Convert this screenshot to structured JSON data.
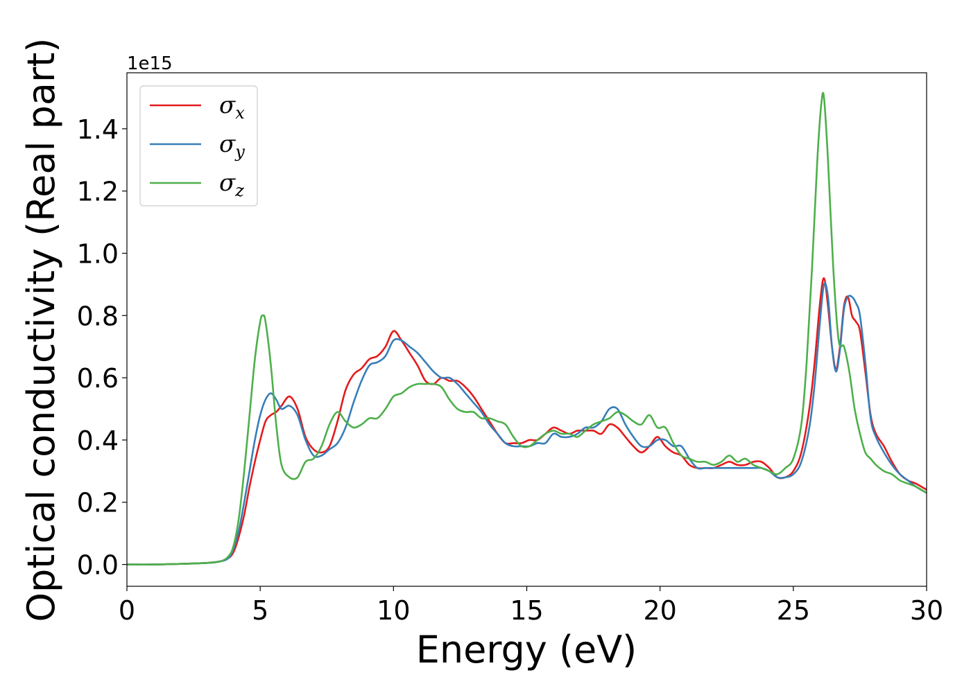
{
  "chart_data": {
    "type": "line",
    "xlabel": "Energy (eV)",
    "ylabel": "Optical conductivity (Real part)",
    "y_offset_label": "1e15",
    "xlim": [
      0,
      30
    ],
    "ylim": [
      -0.07,
      1.58
    ],
    "x_ticks": [
      0,
      5,
      10,
      15,
      20,
      25,
      30
    ],
    "x_tick_labels": [
      "0",
      "5",
      "10",
      "15",
      "20",
      "25",
      "30"
    ],
    "y_ticks": [
      0.0,
      0.2,
      0.4,
      0.6,
      0.8,
      1.0,
      1.2,
      1.4
    ],
    "y_tick_labels": [
      "0.0",
      "0.2",
      "0.4",
      "0.6",
      "0.8",
      "1.0",
      "1.2",
      "1.4"
    ],
    "grid": false,
    "legend_position": "top-left",
    "series": [
      {
        "name": "σx",
        "legend_symbol": "σ",
        "legend_subscript": "x",
        "color": "#e41a1c",
        "x": [
          0,
          1,
          2,
          3,
          3.5,
          3.8,
          4.0,
          4.2,
          4.4,
          4.6,
          4.8,
          5.0,
          5.2,
          5.4,
          5.6,
          5.8,
          6.1,
          6.4,
          6.7,
          7.0,
          7.3,
          7.6,
          7.9,
          8.2,
          8.5,
          8.8,
          9.1,
          9.4,
          9.7,
          10.0,
          10.3,
          10.6,
          10.9,
          11.2,
          11.5,
          11.8,
          12.1,
          12.4,
          12.7,
          13.0,
          13.3,
          13.6,
          13.9,
          14.2,
          14.5,
          14.8,
          15.1,
          15.4,
          15.7,
          16.0,
          16.3,
          16.6,
          16.9,
          17.2,
          17.5,
          17.8,
          18.1,
          18.4,
          18.7,
          19.0,
          19.3,
          19.6,
          19.9,
          20.2,
          20.5,
          20.8,
          21.1,
          21.4,
          21.7,
          22.0,
          22.3,
          22.6,
          22.9,
          23.2,
          23.5,
          23.8,
          24.1,
          24.4,
          24.7,
          25.0,
          25.3,
          25.6,
          25.8,
          26.0,
          26.15,
          26.3,
          26.45,
          26.6,
          26.75,
          26.9,
          27.05,
          27.2,
          27.35,
          27.5,
          27.7,
          27.9,
          28.1,
          28.4,
          28.7,
          29.0,
          29.3,
          29.6,
          30.0
        ],
        "values": [
          0.0,
          0.0,
          0.002,
          0.005,
          0.01,
          0.02,
          0.04,
          0.09,
          0.16,
          0.25,
          0.33,
          0.4,
          0.46,
          0.48,
          0.49,
          0.51,
          0.54,
          0.5,
          0.41,
          0.37,
          0.36,
          0.38,
          0.46,
          0.56,
          0.61,
          0.63,
          0.66,
          0.67,
          0.7,
          0.75,
          0.72,
          0.68,
          0.64,
          0.59,
          0.58,
          0.6,
          0.59,
          0.59,
          0.57,
          0.54,
          0.5,
          0.46,
          0.42,
          0.39,
          0.39,
          0.39,
          0.4,
          0.4,
          0.42,
          0.44,
          0.43,
          0.42,
          0.43,
          0.43,
          0.43,
          0.42,
          0.45,
          0.44,
          0.41,
          0.38,
          0.36,
          0.38,
          0.41,
          0.38,
          0.36,
          0.35,
          0.32,
          0.31,
          0.31,
          0.31,
          0.32,
          0.33,
          0.32,
          0.32,
          0.33,
          0.33,
          0.31,
          0.28,
          0.28,
          0.3,
          0.36,
          0.5,
          0.65,
          0.84,
          0.92,
          0.83,
          0.7,
          0.63,
          0.7,
          0.83,
          0.86,
          0.8,
          0.78,
          0.75,
          0.62,
          0.48,
          0.42,
          0.38,
          0.33,
          0.29,
          0.27,
          0.26,
          0.24
        ]
      },
      {
        "name": "σy",
        "legend_symbol": "σ",
        "legend_subscript": "y",
        "color": "#377eb8",
        "x": [
          0,
          1,
          2,
          3,
          3.5,
          3.8,
          4.0,
          4.2,
          4.4,
          4.6,
          4.8,
          5.0,
          5.2,
          5.4,
          5.6,
          5.8,
          6.1,
          6.4,
          6.7,
          7.0,
          7.3,
          7.6,
          7.9,
          8.2,
          8.5,
          8.8,
          9.1,
          9.4,
          9.7,
          10.0,
          10.3,
          10.6,
          10.9,
          11.2,
          11.5,
          11.8,
          12.1,
          12.4,
          12.7,
          13.0,
          13.3,
          13.6,
          13.9,
          14.2,
          14.5,
          14.8,
          15.1,
          15.4,
          15.7,
          16.0,
          16.3,
          16.6,
          16.9,
          17.2,
          17.5,
          17.8,
          18.1,
          18.4,
          18.7,
          19.0,
          19.3,
          19.6,
          19.9,
          20.2,
          20.5,
          20.8,
          21.1,
          21.4,
          21.7,
          22.0,
          22.3,
          22.6,
          22.9,
          23.2,
          23.5,
          23.8,
          24.1,
          24.4,
          24.7,
          25.0,
          25.3,
          25.6,
          25.8,
          26.0,
          26.15,
          26.3,
          26.45,
          26.6,
          26.75,
          26.9,
          27.05,
          27.2,
          27.35,
          27.5,
          27.7,
          27.9,
          28.1,
          28.4,
          28.7,
          29.0,
          29.3,
          29.6,
          30.0
        ],
        "values": [
          0.0,
          0.0,
          0.002,
          0.005,
          0.01,
          0.02,
          0.05,
          0.11,
          0.2,
          0.3,
          0.4,
          0.48,
          0.53,
          0.55,
          0.53,
          0.5,
          0.51,
          0.48,
          0.4,
          0.35,
          0.35,
          0.37,
          0.39,
          0.44,
          0.52,
          0.59,
          0.64,
          0.65,
          0.67,
          0.72,
          0.72,
          0.7,
          0.68,
          0.65,
          0.62,
          0.6,
          0.6,
          0.58,
          0.55,
          0.52,
          0.49,
          0.45,
          0.42,
          0.39,
          0.38,
          0.38,
          0.38,
          0.39,
          0.39,
          0.42,
          0.41,
          0.41,
          0.42,
          0.44,
          0.44,
          0.46,
          0.5,
          0.5,
          0.45,
          0.41,
          0.38,
          0.38,
          0.4,
          0.4,
          0.38,
          0.38,
          0.34,
          0.31,
          0.31,
          0.31,
          0.31,
          0.31,
          0.31,
          0.31,
          0.31,
          0.31,
          0.3,
          0.28,
          0.28,
          0.29,
          0.33,
          0.44,
          0.58,
          0.78,
          0.9,
          0.86,
          0.7,
          0.62,
          0.69,
          0.82,
          0.86,
          0.86,
          0.84,
          0.8,
          0.65,
          0.47,
          0.41,
          0.36,
          0.32,
          0.29,
          0.27,
          0.25,
          0.23
        ]
      },
      {
        "name": "σz",
        "legend_symbol": "σ",
        "legend_subscript": "z",
        "color": "#4daf4a",
        "x": [
          0,
          1,
          2,
          3,
          3.5,
          3.8,
          4.0,
          4.2,
          4.4,
          4.6,
          4.8,
          5.0,
          5.1,
          5.2,
          5.4,
          5.6,
          5.8,
          6.1,
          6.4,
          6.7,
          7.0,
          7.3,
          7.6,
          7.9,
          8.2,
          8.5,
          8.8,
          9.1,
          9.4,
          9.7,
          10.0,
          10.3,
          10.6,
          10.9,
          11.2,
          11.5,
          11.8,
          12.1,
          12.4,
          12.7,
          13.0,
          13.3,
          13.6,
          13.9,
          14.2,
          14.5,
          14.8,
          15.1,
          15.4,
          15.7,
          16.0,
          16.3,
          16.6,
          16.9,
          17.2,
          17.5,
          17.8,
          18.1,
          18.4,
          18.7,
          19.0,
          19.3,
          19.6,
          19.9,
          20.2,
          20.5,
          20.8,
          21.1,
          21.4,
          21.7,
          22.0,
          22.3,
          22.6,
          22.9,
          23.2,
          23.5,
          23.8,
          24.1,
          24.4,
          24.7,
          25.0,
          25.3,
          25.5,
          25.7,
          25.9,
          26.05,
          26.15,
          26.3,
          26.5,
          26.7,
          26.9,
          27.1,
          27.3,
          27.5,
          27.7,
          27.9,
          28.1,
          28.4,
          28.7,
          29.0,
          29.3,
          29.6,
          30.0
        ],
        "values": [
          0.0,
          0.0,
          0.002,
          0.005,
          0.01,
          0.025,
          0.06,
          0.15,
          0.3,
          0.48,
          0.66,
          0.78,
          0.8,
          0.78,
          0.64,
          0.45,
          0.32,
          0.28,
          0.28,
          0.33,
          0.34,
          0.38,
          0.45,
          0.49,
          0.46,
          0.44,
          0.45,
          0.47,
          0.47,
          0.5,
          0.54,
          0.55,
          0.57,
          0.58,
          0.58,
          0.58,
          0.57,
          0.53,
          0.5,
          0.49,
          0.49,
          0.47,
          0.47,
          0.46,
          0.45,
          0.41,
          0.38,
          0.38,
          0.4,
          0.42,
          0.43,
          0.42,
          0.42,
          0.41,
          0.43,
          0.45,
          0.46,
          0.47,
          0.49,
          0.48,
          0.46,
          0.45,
          0.48,
          0.44,
          0.44,
          0.39,
          0.35,
          0.34,
          0.33,
          0.33,
          0.32,
          0.33,
          0.35,
          0.33,
          0.34,
          0.32,
          0.31,
          0.3,
          0.29,
          0.31,
          0.34,
          0.45,
          0.65,
          0.95,
          1.3,
          1.48,
          1.5,
          1.3,
          0.95,
          0.72,
          0.7,
          0.62,
          0.5,
          0.42,
          0.36,
          0.34,
          0.32,
          0.3,
          0.29,
          0.27,
          0.26,
          0.25,
          0.23
        ]
      }
    ]
  }
}
